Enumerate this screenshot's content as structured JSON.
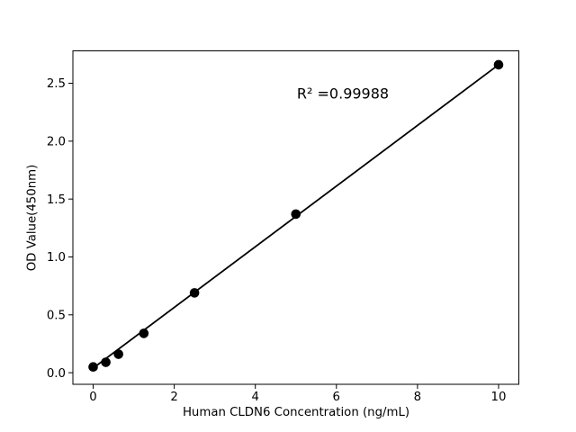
{
  "chart_data": {
    "type": "scatter",
    "title": "",
    "xlabel": "Human CLDN6 Concentration (ng/mL)",
    "ylabel": "OD Value(450nm)",
    "annotation": "R² =0.99988",
    "annotation_pos": {
      "x": 6.16,
      "y": 2.41
    },
    "x": [
      0,
      0.3125,
      0.625,
      1.25,
      2.5,
      5,
      10
    ],
    "y": [
      0.05,
      0.09,
      0.16,
      0.34,
      0.69,
      1.37,
      2.66
    ],
    "trendline": {
      "x": [
        0,
        10
      ],
      "y": [
        0.04,
        2.66
      ]
    },
    "xticks": [
      0,
      2,
      4,
      6,
      8,
      10
    ],
    "xticklabels": [
      "0",
      "2",
      "4",
      "6",
      "8",
      "10"
    ],
    "yticks": [
      0,
      0.5,
      1.0,
      1.5,
      2.0,
      2.5
    ],
    "yticklabels": [
      "0.0",
      "0.5",
      "1.0",
      "1.5",
      "2.0",
      "2.5"
    ],
    "xlim": [
      -0.5,
      10.5
    ],
    "ylim": [
      -0.1,
      2.78
    ],
    "grid": false,
    "legend": null,
    "marker_color": "#000000",
    "line_color": "#000000",
    "axis_color": "#000000",
    "background": "#ffffff"
  }
}
